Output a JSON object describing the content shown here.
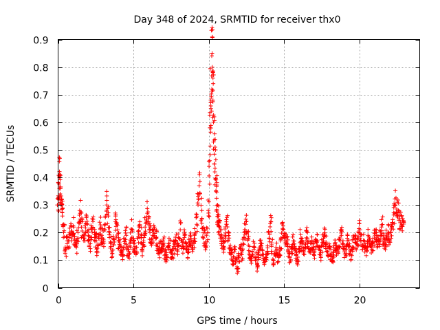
{
  "chart_data": {
    "type": "scatter",
    "title": "Day 348 of 2024, SRMTID for receiver thx0",
    "xlabel": "GPS time / hours",
    "ylabel": "SRMTID / TECUs",
    "xlim": [
      0,
      24
    ],
    "ylim": [
      0,
      0.9
    ],
    "xticks": [
      0,
      5,
      10,
      15,
      20
    ],
    "xtick_labels": [
      "0",
      "5",
      "10",
      "15",
      "20"
    ],
    "yticks": [
      0,
      0.1,
      0.2,
      0.3,
      0.4,
      0.5,
      0.6,
      0.7,
      0.8,
      0.9
    ],
    "ytick_labels": [
      "0",
      "0.1",
      "0.2",
      "0.3",
      "0.4",
      "0.5",
      "0.6",
      "0.7",
      "0.8",
      "0.9"
    ],
    "grid": true,
    "legend": "none",
    "marker": "+",
    "color": "#ff0000",
    "series": [
      {
        "name": "thx0",
        "x": [
          0.0,
          0.05,
          0.1,
          0.15,
          0.2,
          0.25,
          0.3,
          0.4,
          0.5,
          0.6,
          0.7,
          0.8,
          0.9,
          1.0,
          1.1,
          1.2,
          1.3,
          1.4,
          1.5,
          1.6,
          1.7,
          1.8,
          1.9,
          2.0,
          2.1,
          2.2,
          2.3,
          2.4,
          2.5,
          2.6,
          2.7,
          2.8,
          2.9,
          3.0,
          3.1,
          3.2,
          3.3,
          3.4,
          3.5,
          3.6,
          3.7,
          3.8,
          3.9,
          4.0,
          4.1,
          4.2,
          4.3,
          4.4,
          4.5,
          4.6,
          4.7,
          4.8,
          4.9,
          5.0,
          5.1,
          5.2,
          5.3,
          5.4,
          5.5,
          5.6,
          5.7,
          5.8,
          5.9,
          6.0,
          6.1,
          6.2,
          6.3,
          6.4,
          6.5,
          6.6,
          6.7,
          6.8,
          6.9,
          7.0,
          7.1,
          7.2,
          7.3,
          7.4,
          7.5,
          7.6,
          7.7,
          7.8,
          7.9,
          8.0,
          8.1,
          8.2,
          8.3,
          8.4,
          8.5,
          8.6,
          8.7,
          8.8,
          8.9,
          9.0,
          9.1,
          9.2,
          9.3,
          9.4,
          9.5,
          9.6,
          9.7,
          9.8,
          9.9,
          10.0,
          10.05,
          10.1,
          10.15,
          10.2,
          10.25,
          10.3,
          10.35,
          10.4,
          10.45,
          10.5,
          10.55,
          10.6,
          10.65,
          10.7,
          10.8,
          10.9,
          11.0,
          11.1,
          11.2,
          11.3,
          11.4,
          11.5,
          11.6,
          11.7,
          11.8,
          11.9,
          12.0,
          12.1,
          12.2,
          12.3,
          12.4,
          12.5,
          12.6,
          12.7,
          12.8,
          12.9,
          13.0,
          13.1,
          13.2,
          13.3,
          13.4,
          13.5,
          13.6,
          13.7,
          13.8,
          13.9,
          14.0,
          14.1,
          14.2,
          14.3,
          14.4,
          14.5,
          14.6,
          14.7,
          14.8,
          14.9,
          15.0,
          15.1,
          15.2,
          15.3,
          15.4,
          15.5,
          15.6,
          15.7,
          15.8,
          15.9,
          16.0,
          16.1,
          16.2,
          16.3,
          16.4,
          16.5,
          16.6,
          16.7,
          16.8,
          16.9,
          17.0,
          17.1,
          17.2,
          17.3,
          17.4,
          17.5,
          17.6,
          17.7,
          17.8,
          17.9,
          18.0,
          18.1,
          18.2,
          18.3,
          18.4,
          18.5,
          18.6,
          18.7,
          18.8,
          18.9,
          19.0,
          19.1,
          19.2,
          19.3,
          19.4,
          19.5,
          19.6,
          19.7,
          19.8,
          19.9,
          20.0,
          20.1,
          20.2,
          20.3,
          20.4,
          20.5,
          20.6,
          20.7,
          20.8,
          20.9,
          21.0,
          21.1,
          21.2,
          21.3,
          21.4,
          21.5,
          21.6,
          21.7,
          21.8,
          21.9,
          22.0,
          22.1,
          22.2,
          22.3,
          22.4,
          22.5,
          22.6,
          22.7,
          22.8,
          22.9
        ],
        "y": [
          0.3,
          0.38,
          0.41,
          0.36,
          0.32,
          0.3,
          0.26,
          0.2,
          0.13,
          0.16,
          0.17,
          0.2,
          0.19,
          0.22,
          0.17,
          0.15,
          0.2,
          0.24,
          0.27,
          0.22,
          0.18,
          0.2,
          0.23,
          0.19,
          0.16,
          0.21,
          0.24,
          0.2,
          0.17,
          0.14,
          0.18,
          0.22,
          0.19,
          0.18,
          0.23,
          0.3,
          0.26,
          0.2,
          0.16,
          0.13,
          0.18,
          0.24,
          0.21,
          0.17,
          0.15,
          0.13,
          0.12,
          0.16,
          0.19,
          0.14,
          0.12,
          0.17,
          0.21,
          0.16,
          0.15,
          0.13,
          0.18,
          0.22,
          0.19,
          0.14,
          0.17,
          0.22,
          0.27,
          0.24,
          0.2,
          0.16,
          0.19,
          0.22,
          0.18,
          0.15,
          0.13,
          0.16,
          0.14,
          0.17,
          0.12,
          0.11,
          0.14,
          0.16,
          0.13,
          0.12,
          0.15,
          0.17,
          0.14,
          0.18,
          0.21,
          0.17,
          0.15,
          0.19,
          0.16,
          0.13,
          0.15,
          0.17,
          0.14,
          0.16,
          0.19,
          0.23,
          0.3,
          0.37,
          0.28,
          0.22,
          0.18,
          0.15,
          0.2,
          0.28,
          0.44,
          0.58,
          0.68,
          0.8,
          0.85,
          0.74,
          0.6,
          0.5,
          0.42,
          0.35,
          0.3,
          0.26,
          0.24,
          0.22,
          0.18,
          0.17,
          0.15,
          0.19,
          0.23,
          0.18,
          0.14,
          0.12,
          0.1,
          0.13,
          0.09,
          0.07,
          0.11,
          0.14,
          0.12,
          0.16,
          0.2,
          0.23,
          0.18,
          0.13,
          0.1,
          0.12,
          0.15,
          0.11,
          0.08,
          0.12,
          0.16,
          0.14,
          0.12,
          0.09,
          0.11,
          0.13,
          0.18,
          0.24,
          0.15,
          0.1,
          0.12,
          0.14,
          0.11,
          0.13,
          0.17,
          0.21,
          0.19,
          0.17,
          0.16,
          0.13,
          0.11,
          0.14,
          0.17,
          0.15,
          0.12,
          0.1,
          0.14,
          0.18,
          0.16,
          0.13,
          0.17,
          0.2,
          0.15,
          0.13,
          0.16,
          0.14,
          0.12,
          0.15,
          0.17,
          0.14,
          0.12,
          0.15,
          0.17,
          0.19,
          0.16,
          0.13,
          0.15,
          0.12,
          0.1,
          0.13,
          0.16,
          0.14,
          0.15,
          0.17,
          0.19,
          0.16,
          0.13,
          0.14,
          0.17,
          0.15,
          0.12,
          0.14,
          0.17,
          0.19,
          0.16,
          0.18,
          0.21,
          0.18,
          0.15,
          0.17,
          0.14,
          0.16,
          0.19,
          0.17,
          0.15,
          0.16,
          0.18,
          0.2,
          0.17,
          0.15,
          0.19,
          0.22,
          0.18,
          0.16,
          0.18,
          0.2,
          0.17,
          0.2,
          0.23,
          0.27,
          0.3,
          0.31,
          0.28,
          0.25,
          0.23,
          0.24
        ]
      }
    ]
  }
}
